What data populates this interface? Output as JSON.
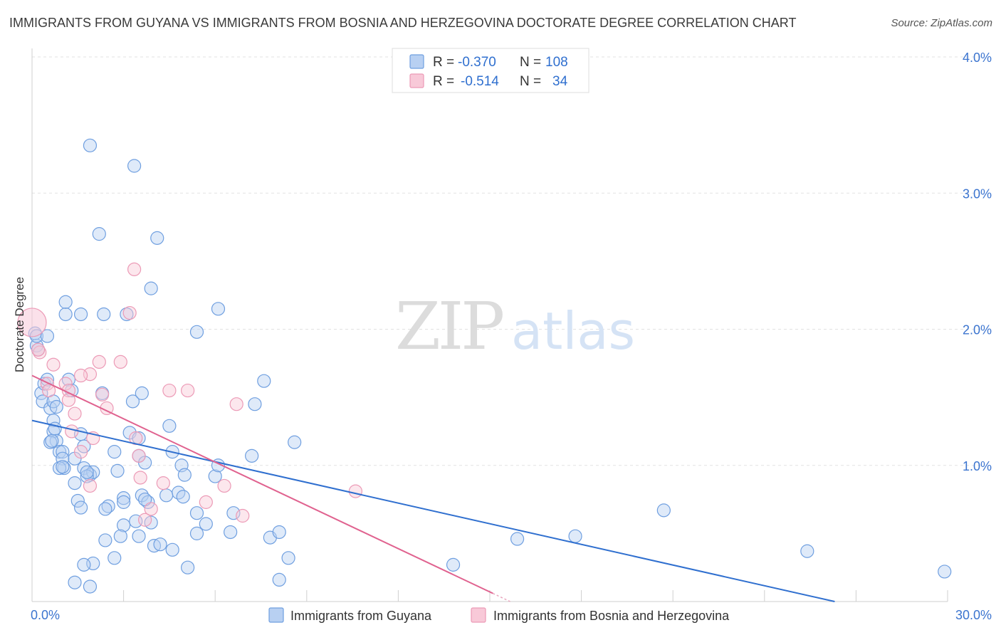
{
  "chart_data": {
    "type": "scatter",
    "title": "IMMIGRANTS FROM GUYANA VS IMMIGRANTS FROM BOSNIA AND HERZEGOVINA DOCTORATE DEGREE CORRELATION CHART",
    "source": "Source: ZipAtlas.com",
    "ylabel": "Doctorate Degree",
    "xlabel": "",
    "xlim": [
      0,
      30
    ],
    "ylim": [
      0,
      4.0
    ],
    "x_tick_labels": [
      {
        "value": 0,
        "label": "0.0%"
      },
      {
        "value": 30,
        "label": "30.0%"
      }
    ],
    "y_tick_labels": [
      {
        "value": 1,
        "label": "1.0%"
      },
      {
        "value": 2,
        "label": "2.0%"
      },
      {
        "value": 3,
        "label": "3.0%"
      },
      {
        "value": 4,
        "label": "4.0%"
      }
    ],
    "watermark": {
      "zip": "ZIP",
      "atlas": "atlas"
    },
    "stats": [
      {
        "r_label": "R =",
        "r_value": "-0.370",
        "n_label": "N =",
        "n_value": "108"
      },
      {
        "r_label": "R =",
        "r_value": "-0.514",
        "n_label": "N =",
        "n_value": "34"
      }
    ],
    "series": [
      {
        "name": "Immigrants from Guyana",
        "color": "#6f9fe0",
        "fill": "#b8d0f2",
        "line_color": "#2f6fcf",
        "trend": {
          "x0": 0,
          "y0": 1.33,
          "x1": 26.3,
          "y1": 0.0
        },
        "points": [
          [
            0.1,
            1.97
          ],
          [
            0.15,
            1.88
          ],
          [
            0.2,
            1.85
          ],
          [
            0.15,
            1.95
          ],
          [
            0.5,
            1.95
          ],
          [
            0.3,
            1.53
          ],
          [
            0.35,
            1.47
          ],
          [
            0.4,
            1.6
          ],
          [
            0.5,
            1.63
          ],
          [
            0.6,
            1.42
          ],
          [
            0.7,
            1.47
          ],
          [
            0.8,
            1.43
          ],
          [
            0.7,
            1.33
          ],
          [
            0.7,
            1.25
          ],
          [
            0.75,
            1.27
          ],
          [
            0.8,
            1.18
          ],
          [
            0.6,
            1.17
          ],
          [
            0.65,
            1.18
          ],
          [
            0.9,
            1.1
          ],
          [
            1.0,
            1.1
          ],
          [
            1.0,
            1.05
          ],
          [
            1.05,
            0.98
          ],
          [
            0.9,
            0.98
          ],
          [
            1.0,
            0.99
          ],
          [
            1.4,
            1.05
          ],
          [
            1.7,
            0.98
          ],
          [
            1.9,
            0.93
          ],
          [
            2.0,
            0.95
          ],
          [
            1.8,
            0.92
          ],
          [
            1.4,
            0.87
          ],
          [
            1.5,
            0.74
          ],
          [
            1.6,
            0.69
          ],
          [
            1.8,
            0.95
          ],
          [
            1.2,
            1.63
          ],
          [
            1.3,
            1.55
          ],
          [
            1.1,
            2.11
          ],
          [
            1.1,
            2.2
          ],
          [
            1.6,
            2.11
          ],
          [
            2.35,
            2.11
          ],
          [
            3.1,
            2.11
          ],
          [
            3.35,
            3.2
          ],
          [
            1.9,
            3.35
          ],
          [
            2.2,
            2.7
          ],
          [
            4.1,
            2.67
          ],
          [
            3.9,
            2.3
          ],
          [
            5.4,
            1.98
          ],
          [
            6.1,
            2.15
          ],
          [
            7.6,
            1.62
          ],
          [
            7.3,
            1.45
          ],
          [
            3.3,
            1.47
          ],
          [
            3.6,
            1.53
          ],
          [
            2.3,
            1.53
          ],
          [
            1.6,
            1.23
          ],
          [
            1.7,
            1.14
          ],
          [
            2.7,
            1.1
          ],
          [
            3.2,
            1.24
          ],
          [
            3.5,
            1.2
          ],
          [
            3.5,
            1.07
          ],
          [
            3.7,
            1.02
          ],
          [
            4.5,
            1.29
          ],
          [
            4.6,
            1.1
          ],
          [
            4.9,
            1.0
          ],
          [
            5.0,
            0.93
          ],
          [
            5.4,
            0.65
          ],
          [
            6.0,
            0.92
          ],
          [
            6.1,
            1.0
          ],
          [
            6.6,
            0.65
          ],
          [
            7.2,
            1.07
          ],
          [
            8.6,
            1.17
          ],
          [
            4.8,
            0.8
          ],
          [
            4.4,
            0.78
          ],
          [
            4.95,
            0.77
          ],
          [
            3.6,
            0.78
          ],
          [
            3.8,
            0.73
          ],
          [
            3.7,
            0.75
          ],
          [
            3.0,
            0.76
          ],
          [
            3.0,
            0.73
          ],
          [
            2.5,
            0.7
          ],
          [
            2.4,
            0.68
          ],
          [
            2.8,
            0.96
          ],
          [
            3.4,
            0.59
          ],
          [
            3.9,
            0.58
          ],
          [
            3.0,
            0.56
          ],
          [
            2.9,
            0.48
          ],
          [
            3.5,
            0.48
          ],
          [
            2.4,
            0.45
          ],
          [
            4.0,
            0.41
          ],
          [
            4.2,
            0.42
          ],
          [
            4.6,
            0.38
          ],
          [
            5.4,
            0.5
          ],
          [
            5.7,
            0.57
          ],
          [
            6.5,
            0.51
          ],
          [
            7.8,
            0.47
          ],
          [
            8.1,
            0.51
          ],
          [
            8.4,
            0.32
          ],
          [
            2.7,
            0.32
          ],
          [
            2.0,
            0.28
          ],
          [
            1.7,
            0.27
          ],
          [
            5.1,
            0.25
          ],
          [
            8.1,
            0.16
          ],
          [
            1.4,
            0.14
          ],
          [
            1.9,
            0.11
          ],
          [
            13.8,
            0.27
          ],
          [
            15.9,
            0.46
          ],
          [
            17.8,
            0.48
          ],
          [
            20.7,
            0.67
          ],
          [
            25.4,
            0.37
          ],
          [
            29.9,
            0.22
          ]
        ]
      },
      {
        "name": "Immigrants from Bosnia and Herzegovina",
        "color": "#ec9ab6",
        "fill": "#f8c9d8",
        "line_color": "#e0628f",
        "trend": {
          "x0": 0,
          "y0": 1.66,
          "x1": 15.1,
          "y1": 0.06
        },
        "points": [
          [
            0.0,
            2.05
          ],
          [
            0.25,
            1.83
          ],
          [
            0.2,
            1.85
          ],
          [
            0.5,
            1.6
          ],
          [
            0.55,
            1.55
          ],
          [
            0.7,
            1.74
          ],
          [
            1.1,
            1.6
          ],
          [
            1.2,
            1.55
          ],
          [
            1.2,
            1.48
          ],
          [
            1.4,
            1.38
          ],
          [
            1.3,
            1.25
          ],
          [
            1.9,
            1.67
          ],
          [
            1.6,
            1.66
          ],
          [
            2.2,
            1.76
          ],
          [
            2.3,
            1.52
          ],
          [
            2.45,
            1.42
          ],
          [
            2.9,
            1.76
          ],
          [
            3.4,
            1.2
          ],
          [
            3.35,
            2.44
          ],
          [
            3.2,
            2.12
          ],
          [
            4.5,
            1.55
          ],
          [
            5.1,
            1.55
          ],
          [
            6.7,
            1.45
          ],
          [
            3.5,
            1.07
          ],
          [
            3.55,
            0.91
          ],
          [
            2.0,
            1.2
          ],
          [
            1.6,
            1.1
          ],
          [
            1.9,
            0.85
          ],
          [
            3.7,
            0.6
          ],
          [
            3.9,
            0.68
          ],
          [
            4.3,
            0.87
          ],
          [
            5.7,
            0.73
          ],
          [
            6.3,
            0.85
          ],
          [
            6.9,
            0.63
          ],
          [
            10.6,
            0.81
          ]
        ]
      }
    ]
  }
}
